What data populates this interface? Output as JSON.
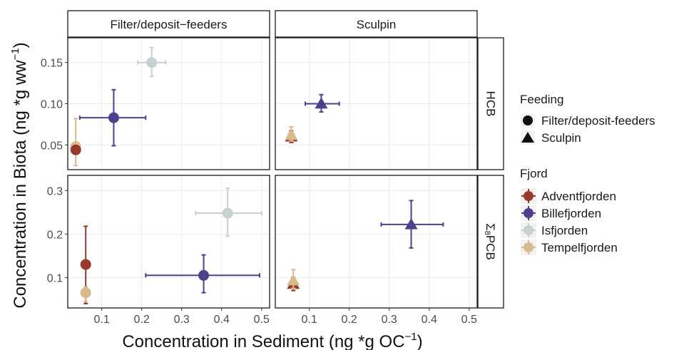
{
  "chart_data": {
    "type": "scatter",
    "subtitle": "faceted scatter with error bars",
    "xlabel": "Concentration in Sediment (ng *g OC",
    "xlabel_sup": "−1",
    "xlabel_close": ")",
    "ylabel": "Concentration in Biota (ng *g ww",
    "ylabel_sup": "−1",
    "ylabel_close": ")",
    "xlim": [
      0.015,
      0.52
    ],
    "x_ticks": [
      0.1,
      0.2,
      0.3,
      0.4,
      0.5
    ],
    "x_tick_labels": [
      "0.1",
      "0.2",
      "0.3",
      "0.4",
      "0.5"
    ],
    "columns": [
      {
        "key": "filter",
        "label": "Filter/deposit−feeders"
      },
      {
        "key": "sculpin",
        "label": "Sculpin"
      }
    ],
    "rows": [
      {
        "key": "hcb",
        "label": "HCB",
        "ylim": [
          0.02,
          0.18
        ],
        "y_ticks": [
          0.05,
          0.1,
          0.15
        ],
        "y_tick_labels": [
          "0.05",
          "0.10",
          "0.15"
        ]
      },
      {
        "key": "pcb",
        "label_prefix": "Σ",
        "label_sub": "8",
        "label_main": "PCB",
        "ylim": [
          0.03,
          0.335
        ],
        "y_ticks": [
          0.1,
          0.2,
          0.3
        ],
        "y_tick_labels": [
          "0.1",
          "0.2",
          "0.3"
        ]
      }
    ],
    "legend": {
      "placement": "right",
      "feeding_title": "Feeding",
      "feeding_items": [
        {
          "label": "Filter/deposit-feeders",
          "shape": "circle"
        },
        {
          "label": "Sculpin",
          "shape": "triangle"
        }
      ],
      "fjord_title": "Fjord",
      "fjord_items": [
        {
          "label": "Adventfjorden",
          "color": "#973A2B"
        },
        {
          "label": "Billefjorden",
          "color": "#4F3F8C"
        },
        {
          "label": "Isfjorden",
          "color": "#C6D1D1"
        },
        {
          "label": "Tempelfjorden",
          "color": "#D9BA8C"
        }
      ]
    },
    "colors": {
      "Adventfjorden": "#973A2B",
      "Billefjorden": "#4F3F8C",
      "Isfjorden": "#C6D1D1",
      "Tempelfjorden": "#D9BA8C"
    },
    "points": [
      {
        "fjord": "Isfjorden",
        "feeding": "filter",
        "row": "hcb",
        "x": 0.225,
        "y": 0.15,
        "xerr": [
          0.19,
          0.26
        ],
        "yerr": [
          0.133,
          0.168
        ]
      },
      {
        "fjord": "Billefjorden",
        "feeding": "filter",
        "row": "hcb",
        "x": 0.13,
        "y": 0.083,
        "xerr": [
          0.045,
          0.21
        ],
        "yerr": [
          0.049,
          0.117
        ]
      },
      {
        "fjord": "Tempelfjorden",
        "feeding": "filter",
        "row": "hcb",
        "x": 0.035,
        "y": 0.048,
        "xerr": [
          0.035,
          0.035
        ],
        "yerr": [
          0.025,
          0.082
        ]
      },
      {
        "fjord": "Adventfjorden",
        "feeding": "filter",
        "row": "hcb",
        "x": 0.035,
        "y": 0.044,
        "xerr": [
          0.035,
          0.035
        ],
        "yerr": [
          0.04,
          0.048
        ]
      },
      {
        "fjord": "Billefjorden",
        "feeding": "sculpin",
        "row": "hcb",
        "x": 0.13,
        "y": 0.1,
        "xerr": [
          0.09,
          0.175
        ],
        "yerr": [
          0.09,
          0.111
        ]
      },
      {
        "fjord": "Adventfjorden",
        "feeding": "sculpin",
        "row": "hcb",
        "x": 0.055,
        "y": 0.06,
        "xerr": [
          0.048,
          0.062
        ],
        "yerr": [
          0.053,
          0.067
        ]
      },
      {
        "fjord": "Tempelfjorden",
        "feeding": "sculpin",
        "row": "hcb",
        "x": 0.055,
        "y": 0.062,
        "xerr": [
          0.048,
          0.062
        ],
        "yerr": [
          0.055,
          0.072
        ]
      },
      {
        "fjord": "Isfjorden",
        "feeding": "filter",
        "row": "pcb",
        "x": 0.415,
        "y": 0.248,
        "xerr": [
          0.335,
          0.5
        ],
        "yerr": [
          0.195,
          0.305
        ]
      },
      {
        "fjord": "Billefjorden",
        "feeding": "filter",
        "row": "pcb",
        "x": 0.355,
        "y": 0.105,
        "xerr": [
          0.21,
          0.495
        ],
        "yerr": [
          0.065,
          0.152
        ]
      },
      {
        "fjord": "Adventfjorden",
        "feeding": "filter",
        "row": "pcb",
        "x": 0.06,
        "y": 0.13,
        "xerr": [
          0.06,
          0.06
        ],
        "yerr": [
          0.04,
          0.218
        ]
      },
      {
        "fjord": "Tempelfjorden",
        "feeding": "filter",
        "row": "pcb",
        "x": 0.06,
        "y": 0.065,
        "xerr": [
          0.055,
          0.065
        ],
        "yerr": [
          0.045,
          0.078
        ]
      },
      {
        "fjord": "Billefjorden",
        "feeding": "sculpin",
        "row": "pcb",
        "x": 0.355,
        "y": 0.222,
        "xerr": [
          0.28,
          0.435
        ],
        "yerr": [
          0.168,
          0.277
        ]
      },
      {
        "fjord": "Adventfjorden",
        "feeding": "sculpin",
        "row": "pcb",
        "x": 0.06,
        "y": 0.085,
        "xerr": [
          0.055,
          0.065
        ],
        "yerr": [
          0.07,
          0.1
        ]
      },
      {
        "fjord": "Tempelfjorden",
        "feeding": "sculpin",
        "row": "pcb",
        "x": 0.06,
        "y": 0.093,
        "xerr": [
          0.055,
          0.065
        ],
        "yerr": [
          0.075,
          0.118
        ]
      }
    ]
  }
}
